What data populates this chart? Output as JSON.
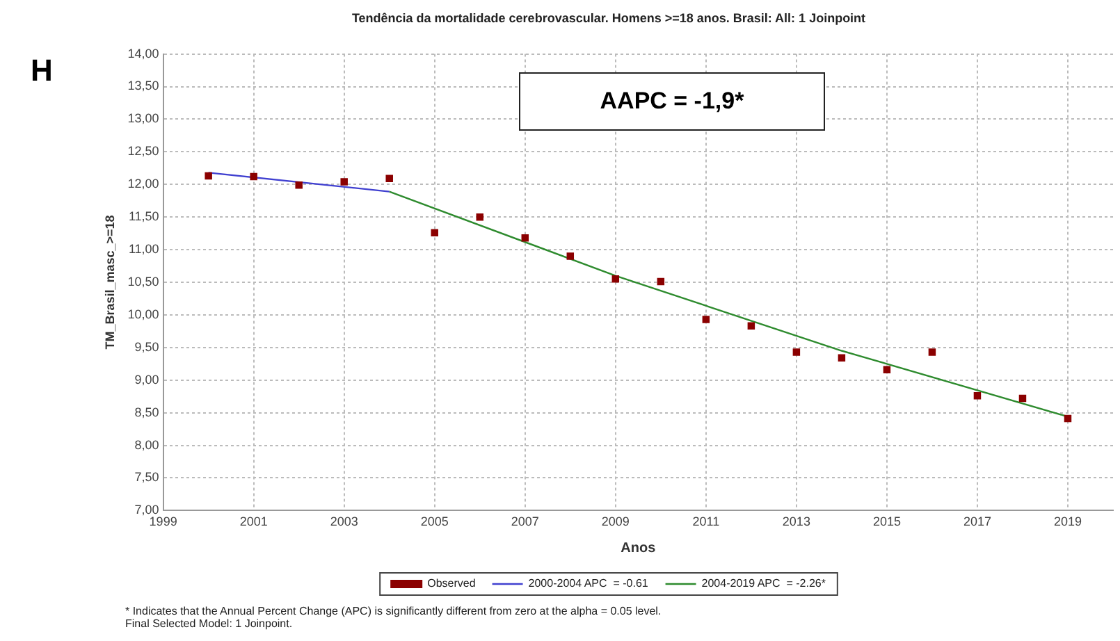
{
  "chart_data": {
    "type": "scatter",
    "title": "Tendência da mortalidade cerebrovascular. Homens >=18 anos. Brasil: All: 1 Joinpoint",
    "xlabel": "Anos",
    "ylabel": "TM_Brasil_masc_>=18",
    "xlim": [
      1999,
      2020
    ],
    "xticks": [
      1999,
      2001,
      2003,
      2005,
      2007,
      2009,
      2011,
      2013,
      2015,
      2017,
      2019
    ],
    "ylim": [
      7,
      14
    ],
    "yticks": [
      {
        "value": 7,
        "label": "7,00"
      },
      {
        "value": 7.5,
        "label": "7,50"
      },
      {
        "value": 8,
        "label": "8,00"
      },
      {
        "value": 8.5,
        "label": "8,50"
      },
      {
        "value": 9,
        "label": "9,00"
      },
      {
        "value": 9.5,
        "label": "9,50"
      },
      {
        "value": 10,
        "label": "10,00"
      },
      {
        "value": 10.5,
        "label": "10,50"
      },
      {
        "value": 11,
        "label": "11,00"
      },
      {
        "value": 11.5,
        "label": "11,50"
      },
      {
        "value": 12,
        "label": "12,00"
      },
      {
        "value": 12.5,
        "label": "12,50"
      },
      {
        "value": 13,
        "label": "13,00"
      },
      {
        "value": 13.5,
        "label": "13,50"
      },
      {
        "value": 14,
        "label": "14,00"
      }
    ],
    "grid": true,
    "legend": "bottom",
    "series": [
      {
        "name": "Observed",
        "marker": "square",
        "color": "#8b0000",
        "x": [
          2000,
          2001,
          2002,
          2003,
          2004,
          2005,
          2006,
          2007,
          2008,
          2009,
          2010,
          2011,
          2012,
          2013,
          2014,
          2015,
          2016,
          2017,
          2018,
          2019
        ],
        "values": [
          12.13,
          12.12,
          11.99,
          12.04,
          12.09,
          11.26,
          11.5,
          11.18,
          10.9,
          10.55,
          10.51,
          9.93,
          9.83,
          9.43,
          9.34,
          9.16,
          9.43,
          8.76,
          8.72,
          8.41
        ]
      },
      {
        "name": "2000-2004 APC  = -0.61",
        "type": "line",
        "marker": "none",
        "color": "#4040d0",
        "x": [
          2000,
          2004
        ],
        "values": [
          12.18,
          11.89
        ]
      },
      {
        "name": "2004-2019 APC  = -2.26*",
        "type": "line",
        "marker": "none",
        "color": "#2e8b2e",
        "x": [
          2004,
          2009,
          2014,
          2019
        ],
        "values": [
          11.89,
          10.6,
          9.45,
          8.44
        ]
      }
    ],
    "annotations": [
      "H",
      "AAPC = -1,9*",
      "* Indicates that the Annual Percent Change (APC) is significantly different from zero at the alpha = 0.05 level.",
      "Final Selected Model: 1 Joinpoint."
    ]
  }
}
